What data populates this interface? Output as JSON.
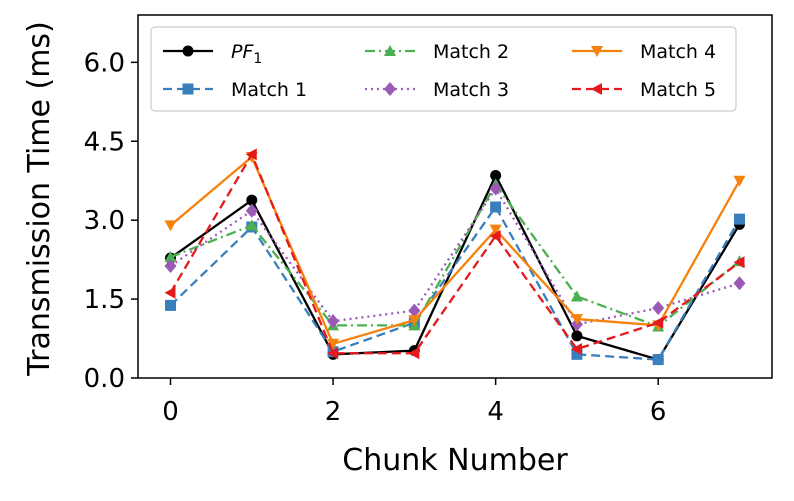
{
  "chart_data": {
    "type": "line",
    "xlabel": "Chunk Number",
    "ylabel": "Transmission Time (ms)",
    "x": [
      0,
      1,
      2,
      3,
      4,
      5,
      6,
      7
    ],
    "xlim": [
      -0.4,
      7.4
    ],
    "ylim": [
      0.0,
      6.9
    ],
    "xticks": [
      0,
      2,
      4,
      6
    ],
    "yticks": [
      0.0,
      1.5,
      3.0,
      4.5,
      6.0
    ],
    "ytick_labels": [
      "0.0",
      "1.5",
      "3.0",
      "4.5",
      "6.0"
    ],
    "legend_position": "top",
    "series": [
      {
        "name": "PF",
        "subscript": "1",
        "color": "#000000",
        "linestyle": "solid",
        "marker": "circle",
        "values": [
          2.28,
          3.38,
          0.45,
          0.52,
          3.85,
          0.8,
          0.35,
          2.92
        ]
      },
      {
        "name": "Match 1",
        "color": "#3a7fbd",
        "linestyle": "dashed",
        "marker": "square",
        "values": [
          1.38,
          2.87,
          0.5,
          1.05,
          3.25,
          0.45,
          0.35,
          3.02
        ]
      },
      {
        "name": "Match 2",
        "color": "#4caf50",
        "linestyle": "dashdot",
        "marker": "triangle-up",
        "values": [
          2.3,
          2.9,
          1.0,
          1.0,
          3.68,
          1.55,
          0.98,
          2.22
        ]
      },
      {
        "name": "Match 3",
        "color": "#9b59b6",
        "linestyle": "dotted",
        "marker": "diamond",
        "values": [
          2.13,
          3.18,
          1.08,
          1.28,
          3.6,
          1.02,
          1.33,
          1.8
        ]
      },
      {
        "name": "Match 4",
        "color": "#f5820d",
        "linestyle": "solid",
        "marker": "triangle-down",
        "values": [
          2.9,
          4.2,
          0.65,
          1.1,
          2.82,
          1.12,
          1.0,
          3.75
        ]
      },
      {
        "name": "Match 5",
        "color": "#e41a1c",
        "linestyle": "dashed",
        "marker": "triangle-left",
        "values": [
          1.62,
          4.25,
          0.47,
          0.47,
          2.7,
          0.55,
          1.05,
          2.2
        ]
      }
    ]
  }
}
